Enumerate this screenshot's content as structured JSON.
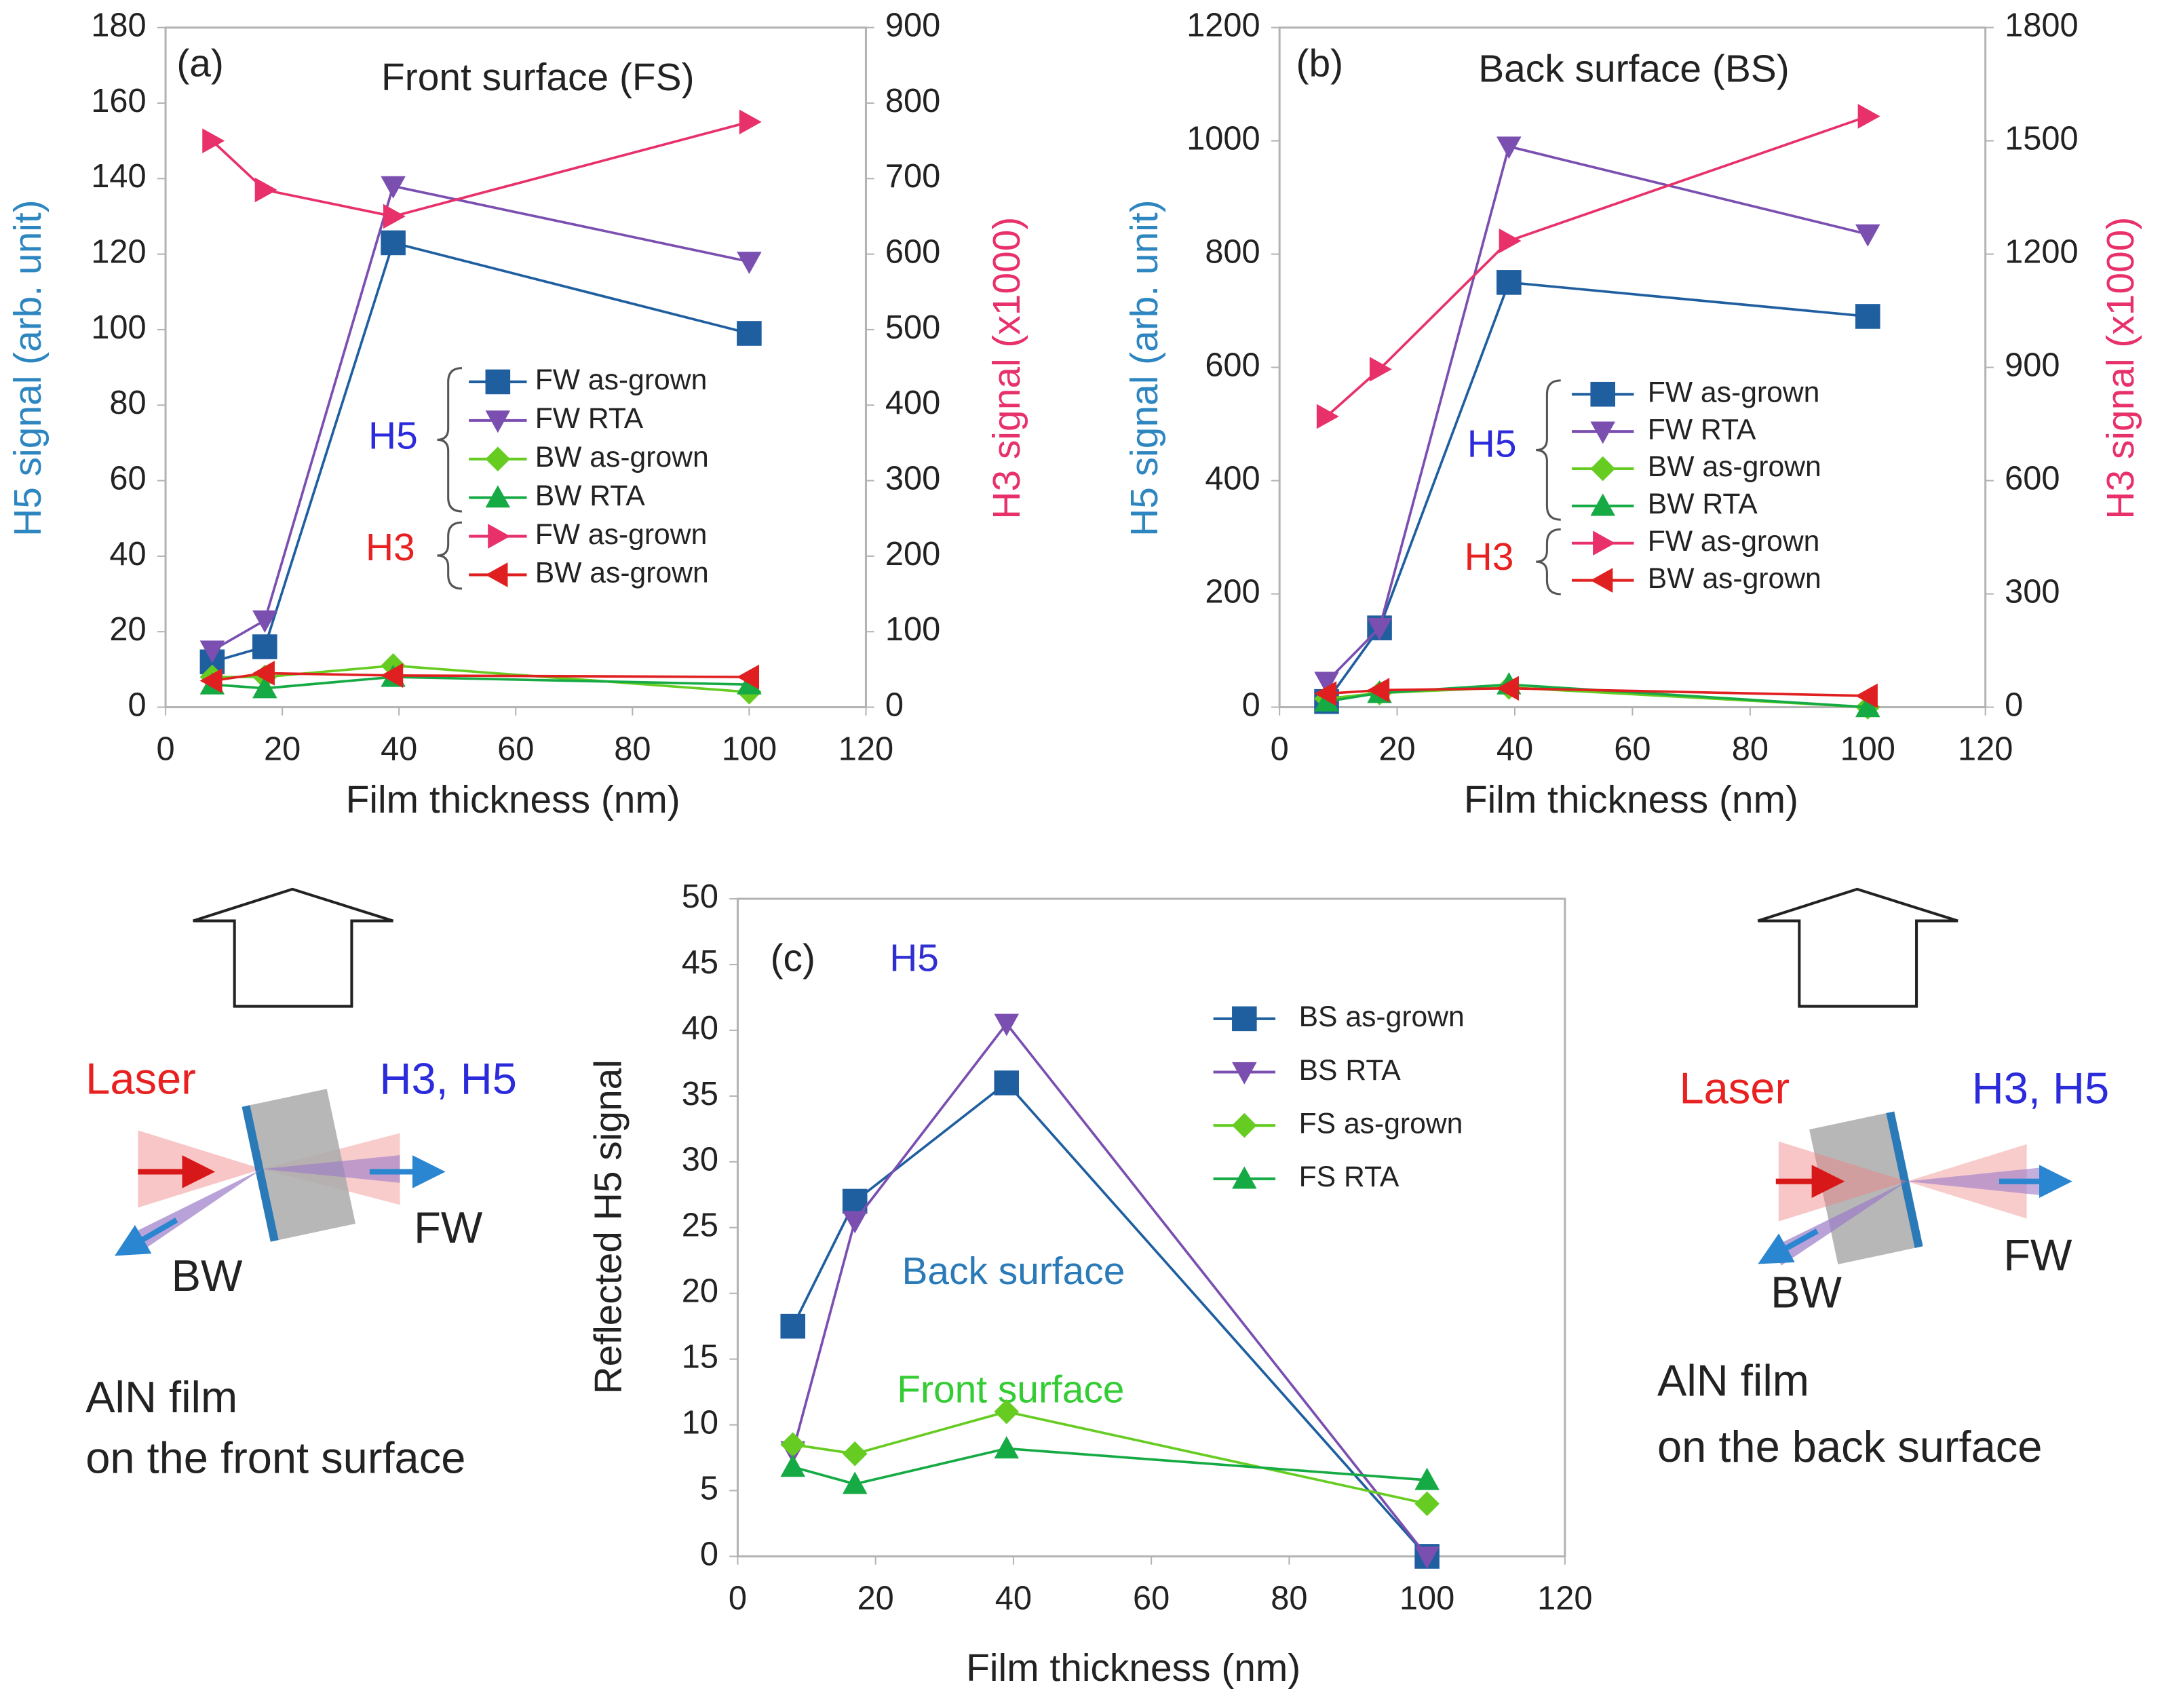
{
  "chart_data": [
    {
      "type": "line",
      "title": "Front surface (FS)",
      "annotations": [
        {
          "text": "(a)"
        }
      ],
      "xlabel": "Film thickness (nm)",
      "ylabel": "H5 signal (arb. unit)",
      "ylabel_color": "#2e86c1",
      "y2label": "H3 signal (x1000)",
      "y2label_color": "#e8306a",
      "x": [
        8,
        17,
        39,
        100
      ],
      "xlim": [
        0,
        120
      ],
      "xticks": [
        0,
        20,
        40,
        60,
        80,
        100,
        120
      ],
      "ylim": [
        0,
        180
      ],
      "yticks": [
        0,
        20,
        40,
        60,
        80,
        100,
        120,
        140,
        160,
        180
      ],
      "y2lim": [
        0,
        900
      ],
      "y2ticks": [
        0,
        100,
        200,
        300,
        400,
        500,
        600,
        700,
        800,
        900
      ],
      "grid": false,
      "legend_groups": [
        {
          "label": "H5",
          "color": "#2b2bdc"
        },
        {
          "label": "H3",
          "color": "#e82020"
        }
      ],
      "series": [
        {
          "name": "FW as-grown",
          "color": "#1f5fa0",
          "marker": "square",
          "values": [
            12,
            16,
            123,
            99
          ]
        },
        {
          "name": "FW RTA",
          "color": "#7a4fb0",
          "marker": "down",
          "values": [
            15,
            23,
            138,
            118
          ]
        },
        {
          "name": "BW as-grown",
          "color": "#66cc22",
          "marker": "diamond",
          "values": [
            8,
            8,
            11,
            4
          ]
        },
        {
          "name": "BW RTA",
          "color": "#16aa44",
          "marker": "up",
          "values": [
            6,
            5,
            8,
            6
          ]
        },
        {
          "name": "FW as-grown",
          "color": "#e8306a",
          "marker": "right",
          "axis": "y2",
          "values": [
            750,
            685,
            650,
            775
          ]
        },
        {
          "name": "BW as-grown",
          "color": "#e02020",
          "marker": "left",
          "axis": "y2",
          "values": [
            35,
            45,
            42,
            40
          ]
        }
      ]
    },
    {
      "type": "line",
      "title": "Back surface (BS)",
      "annotations": [
        {
          "text": "(b)"
        }
      ],
      "xlabel": "Film thickness (nm)",
      "ylabel": "H5 signal (arb. unit)",
      "ylabel_color": "#2e86c1",
      "y2label": "H3 signal (x1000)",
      "y2label_color": "#e8306a",
      "x": [
        8,
        17,
        39,
        100
      ],
      "xlim": [
        0,
        120
      ],
      "xticks": [
        0,
        20,
        40,
        60,
        80,
        100,
        120
      ],
      "ylim": [
        0,
        1200
      ],
      "yticks": [
        0,
        200,
        400,
        600,
        800,
        1000,
        1200
      ],
      "y2lim": [
        0,
        1800
      ],
      "y2ticks": [
        0,
        300,
        600,
        900,
        1200,
        1500,
        1800
      ],
      "grid": false,
      "legend_groups": [
        {
          "label": "H5",
          "color": "#2b2bdc"
        },
        {
          "label": "H3",
          "color": "#e82020"
        }
      ],
      "series": [
        {
          "name": "FW as-grown",
          "color": "#1f5fa0",
          "marker": "square",
          "values": [
            10,
            140,
            750,
            690
          ]
        },
        {
          "name": "FW RTA",
          "color": "#7a4fb0",
          "marker": "down",
          "values": [
            45,
            140,
            990,
            835
          ]
        },
        {
          "name": "BW as-grown",
          "color": "#66cc22",
          "marker": "diamond",
          "values": [
            15,
            25,
            35,
            0
          ]
        },
        {
          "name": "BW RTA",
          "color": "#16aa44",
          "marker": "up",
          "values": [
            10,
            25,
            40,
            0
          ]
        },
        {
          "name": "FW as-grown",
          "color": "#e8306a",
          "marker": "right",
          "axis": "y2",
          "values": [
            770,
            895,
            1235,
            1565
          ]
        },
        {
          "name": "BW as-grown",
          "color": "#e02020",
          "marker": "left",
          "axis": "y2",
          "values": [
            36,
            45,
            50,
            30
          ]
        }
      ]
    },
    {
      "type": "line",
      "annotations": [
        {
          "text": "(c)"
        },
        {
          "text": "H5",
          "color": "#3030d0"
        },
        {
          "text": "Back surface",
          "color": "#2a7ab8"
        },
        {
          "text": "Front surface",
          "color": "#33cc33"
        }
      ],
      "xlabel": "Film thickness (nm)",
      "ylabel": "Reflected H5 signal",
      "x": [
        8,
        17,
        39,
        100
      ],
      "xlim": [
        0,
        120
      ],
      "xticks": [
        0,
        20,
        40,
        60,
        80,
        100,
        120
      ],
      "ylim": [
        0,
        50
      ],
      "yticks": [
        0,
        5,
        10,
        15,
        20,
        25,
        30,
        35,
        40,
        45,
        50
      ],
      "grid": false,
      "series": [
        {
          "name": "BS as-grown",
          "color": "#1f5fa0",
          "marker": "square",
          "values": [
            17.5,
            27,
            36,
            0
          ]
        },
        {
          "name": "BS RTA",
          "color": "#7a4fb0",
          "marker": "down",
          "values": [
            8,
            25.5,
            40.5,
            0
          ]
        },
        {
          "name": "FS as-grown",
          "color": "#66cc22",
          "marker": "diamond",
          "values": [
            8.5,
            7.8,
            11,
            4
          ]
        },
        {
          "name": "FS RTA",
          "color": "#16aa44",
          "marker": "up",
          "values": [
            6.8,
            5.5,
            8.2,
            5.8
          ]
        }
      ]
    }
  ],
  "diagrams": [
    {
      "laser": "Laser",
      "harmonics": "H3, H5",
      "fw": "FW",
      "bw": "BW",
      "caption": [
        "AlN film",
        "on the front surface"
      ]
    },
    {
      "laser": "Laser",
      "harmonics": "H3, H5",
      "fw": "FW",
      "bw": "BW",
      "caption": [
        "AlN film",
        "on the back surface"
      ]
    }
  ]
}
